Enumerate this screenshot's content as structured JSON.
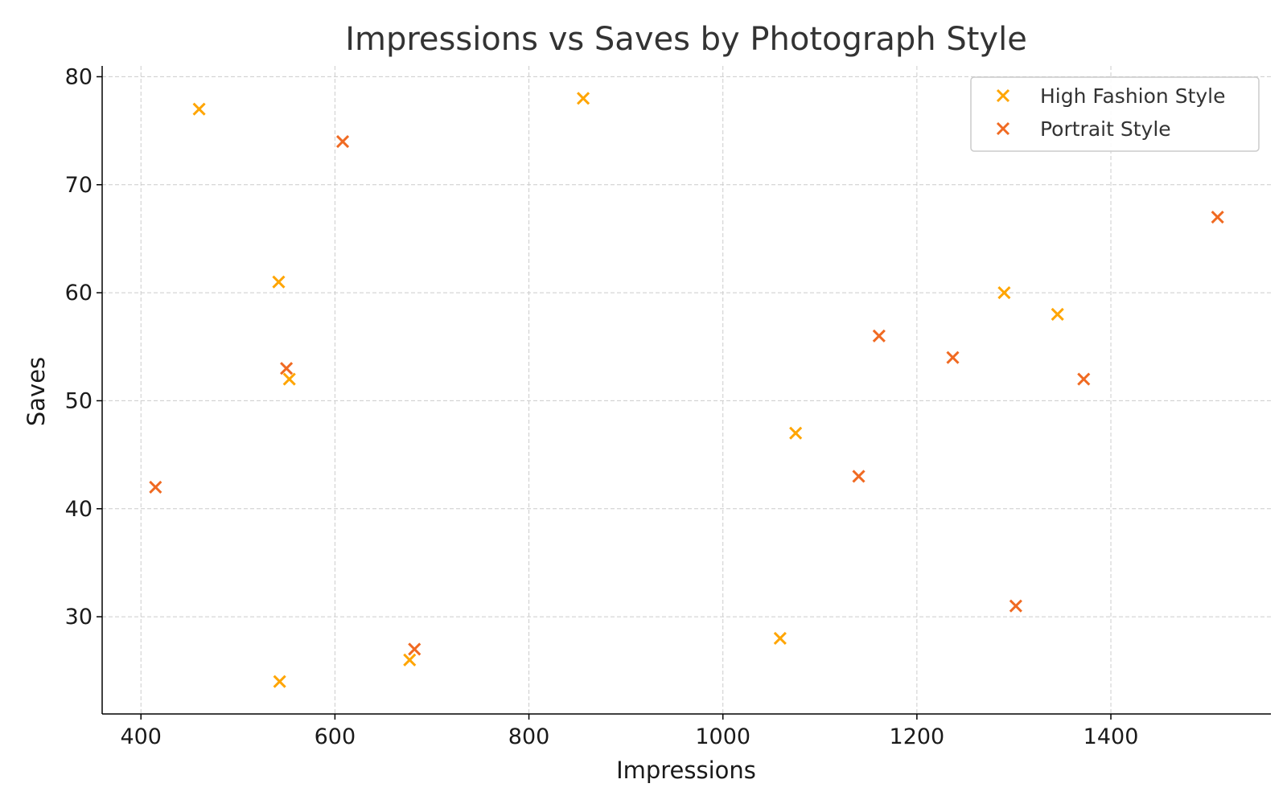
{
  "chart_data": {
    "type": "scatter",
    "title": "Impressions vs Saves by Photograph Style",
    "xlabel": "Impressions",
    "ylabel": "Saves",
    "xlim": [
      360,
      1565
    ],
    "ylim": [
      21,
      81
    ],
    "xticks": [
      400,
      600,
      800,
      1000,
      1200,
      1400
    ],
    "yticks": [
      30,
      40,
      50,
      60,
      70,
      80
    ],
    "grid": true,
    "legend_position": "top-right",
    "marker": "x",
    "series": [
      {
        "name": "High Fashion Style",
        "color": "#FFA500",
        "points": [
          {
            "x": 460,
            "y": 77
          },
          {
            "x": 856,
            "y": 78
          },
          {
            "x": 542,
            "y": 61
          },
          {
            "x": 553,
            "y": 52
          },
          {
            "x": 543,
            "y": 24
          },
          {
            "x": 677,
            "y": 26
          },
          {
            "x": 1059,
            "y": 28
          },
          {
            "x": 1075,
            "y": 47
          },
          {
            "x": 1290,
            "y": 60
          },
          {
            "x": 1345,
            "y": 58
          }
        ]
      },
      {
        "name": "Portrait Style",
        "color": "#F06A22",
        "points": [
          {
            "x": 608,
            "y": 74
          },
          {
            "x": 550,
            "y": 53
          },
          {
            "x": 415,
            "y": 42
          },
          {
            "x": 682,
            "y": 27
          },
          {
            "x": 1140,
            "y": 43
          },
          {
            "x": 1161,
            "y": 56
          },
          {
            "x": 1237,
            "y": 54
          },
          {
            "x": 1302,
            "y": 31
          },
          {
            "x": 1372,
            "y": 52
          },
          {
            "x": 1510,
            "y": 67
          }
        ]
      }
    ]
  }
}
